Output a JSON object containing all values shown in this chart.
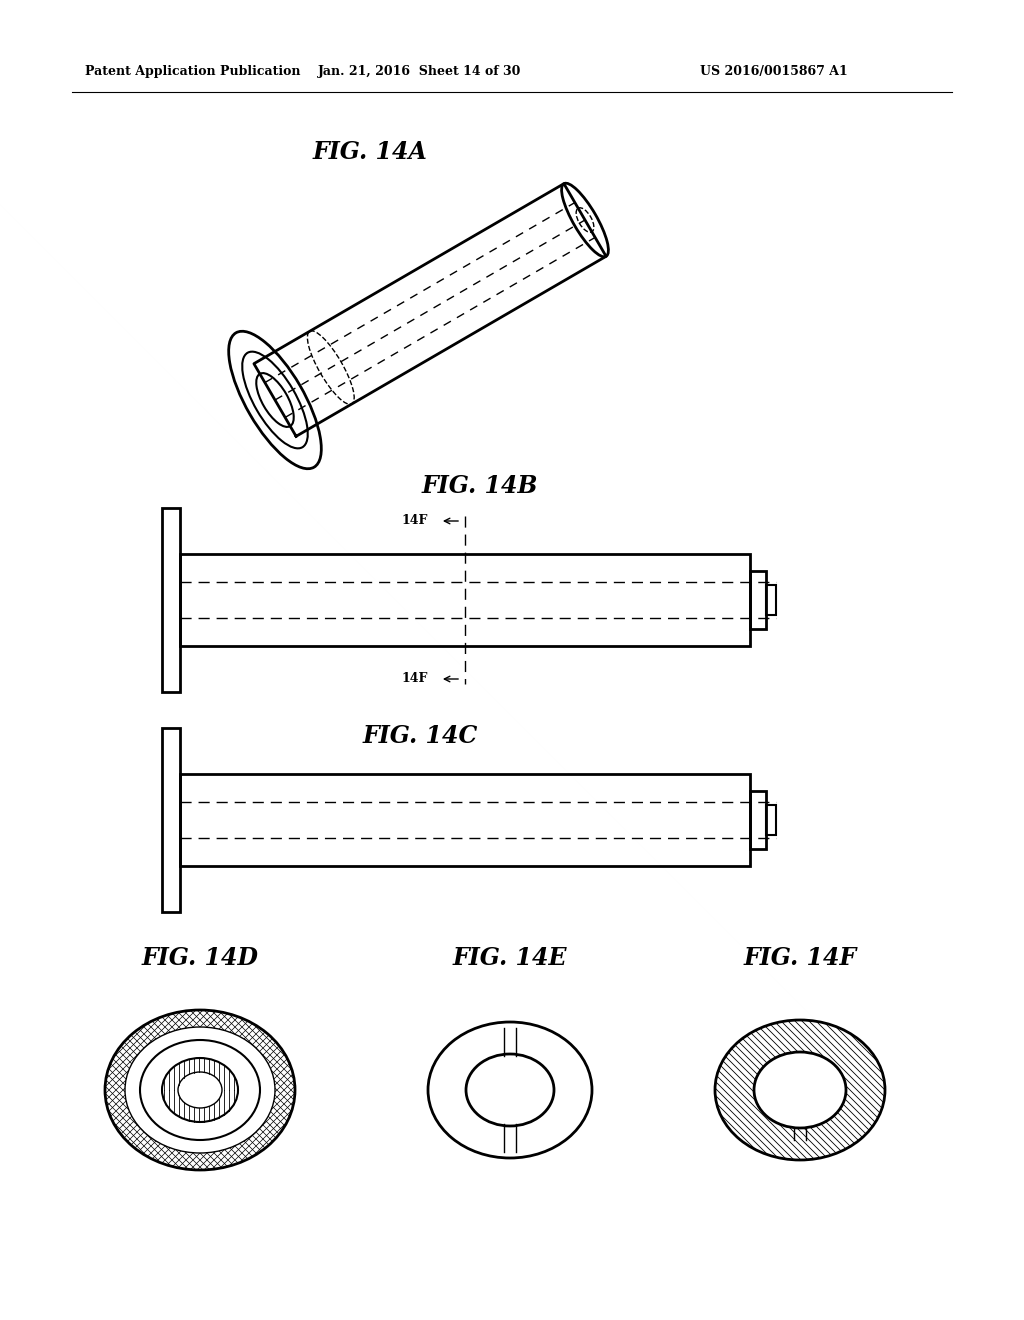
{
  "header_left": "Patent Application Publication",
  "header_mid": "Jan. 21, 2016  Sheet 14 of 30",
  "header_right": "US 2016/0015867 A1",
  "fig_14a_label": "FIG. 14A",
  "fig_14b_label": "FIG. 14B",
  "fig_14c_label": "FIG. 14C",
  "fig_14d_label": "FIG. 14D",
  "fig_14e_label": "FIG. 14E",
  "fig_14f_label": "FIG. 14F",
  "label_14f": "14F",
  "bg_color": "#ffffff",
  "line_color": "#000000"
}
